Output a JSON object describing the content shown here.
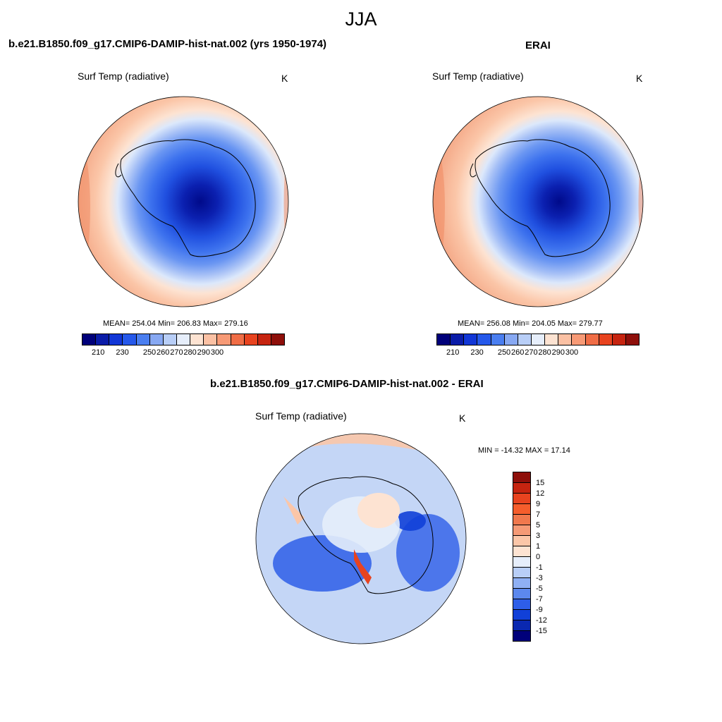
{
  "title": "JJA",
  "panels": [
    {
      "title": "b.e21.B1850.f09_g17.CMIP6-DAMIP-hist-nat.002 (yrs 1950-1974)",
      "variable": "Surf Temp (radiative)",
      "units": "K",
      "stats": "MEAN= 254.04  Min= 206.83  Max= 279.16"
    },
    {
      "title": "ERAI",
      "variable": "Surf Temp (radiative)",
      "units": "K",
      "stats": "MEAN= 256.08  Min= 204.05  Max= 279.77"
    },
    {
      "title": "b.e21.B1850.f09_g17.CMIP6-DAMIP-hist-nat.002 - ERAI",
      "variable": "Surf Temp (radiative)",
      "units": "K",
      "stats": "MIN = -14.32 MAX =  17.14"
    }
  ],
  "colorbar_abs": {
    "colors": [
      "#00007a",
      "#0a1ca8",
      "#1136d6",
      "#2558ea",
      "#4a7ef0",
      "#87a8f2",
      "#b8cef7",
      "#e6eefb",
      "#fde3d2",
      "#fbc1a4",
      "#f79a76",
      "#f06d46",
      "#e8431f",
      "#c62410",
      "#8e0f0a"
    ],
    "ticks": [
      "210",
      "230",
      "250",
      "260",
      "270",
      "280",
      "290",
      "300"
    ]
  },
  "colorbar_diff": {
    "colors": [
      "#8e0f0a",
      "#c62410",
      "#e8431f",
      "#f55d2c",
      "#f0784d",
      "#f59a76",
      "#fbc6a8",
      "#fde3d2",
      "#e6eefb",
      "#b8cef7",
      "#8fb0f4",
      "#5c88ee",
      "#2e5ee8",
      "#1140d8",
      "#0a28b0",
      "#00007a"
    ],
    "ticks": [
      "15",
      "12",
      "9",
      "7",
      "5",
      "3",
      "1",
      "0",
      "-1",
      "-3",
      "-5",
      "-7",
      "-9",
      "-12",
      "-15"
    ]
  }
}
